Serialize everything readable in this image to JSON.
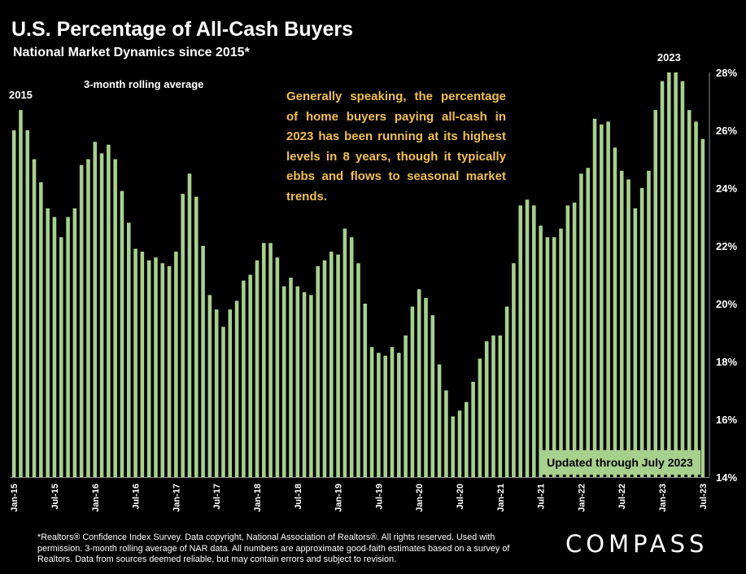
{
  "header": {
    "title": "U.S. Percentage of All-Cash Buyers",
    "subtitle": "National Market Dynamics since 2015*"
  },
  "annotations": {
    "commentary": "Generally speaking, the percentage of home buyers paying all-cash in 2023 has been running at its highest levels in 8 years, though it typically ebbs and flows to seasonal market trends.",
    "updated": "Updated through July 2023"
  },
  "footer": {
    "footnote": "*Realtors® Confidence Index Survey. Data copyright, National Association of Realtors®. All rights reserved. Used with permission. 3-month rolling average of NAR data. All numbers are approximate good-faith estimates based on a survey of Realtors. Data from sources deemed reliable, but may contain errors and subject to revision.",
    "logo": "COMPASS"
  },
  "colors": {
    "background": "#000000",
    "bar": "#a8d08d",
    "commentary": "#f2c14e",
    "text": "#ffffff",
    "grid": "#5a5a5a"
  },
  "chart_data": {
    "type": "bar",
    "title": "U.S. Percentage of All-Cash Buyers",
    "subtitle": "National Market Dynamics since 2015*",
    "series_note": "3-month rolling average",
    "ylim": [
      14,
      28
    ],
    "yticks": [
      14,
      16,
      18,
      20,
      22,
      24,
      26,
      28
    ],
    "ytick_labels": [
      "14%",
      "16%",
      "18%",
      "20%",
      "22%",
      "24%",
      "26%",
      "28%"
    ],
    "y_axis_side": "right",
    "grid": false,
    "legend": "none",
    "xtick_labels": [
      "Jan-15",
      "Jul-15",
      "Jan-16",
      "Jul-16",
      "Jan-17",
      "Jul-17",
      "Jan-18",
      "Jul-18",
      "Jan-19",
      "Jul-19",
      "Jan-20",
      "Jul-20",
      "Jan-21",
      "Jul-21",
      "Jan-22",
      "Jul-22",
      "Jan-23",
      "Jul-23"
    ],
    "value_labels": [
      {
        "category": "Feb-15",
        "text": "2015"
      },
      {
        "category": "Feb-23",
        "text": "2023"
      }
    ],
    "categories": [
      "Jan-15",
      "Feb-15",
      "Mar-15",
      "Apr-15",
      "May-15",
      "Jun-15",
      "Jul-15",
      "Aug-15",
      "Sep-15",
      "Oct-15",
      "Nov-15",
      "Dec-15",
      "Jan-16",
      "Feb-16",
      "Mar-16",
      "Apr-16",
      "May-16",
      "Jun-16",
      "Jul-16",
      "Aug-16",
      "Sep-16",
      "Oct-16",
      "Nov-16",
      "Dec-16",
      "Jan-17",
      "Feb-17",
      "Mar-17",
      "Apr-17",
      "May-17",
      "Jun-17",
      "Jul-17",
      "Aug-17",
      "Sep-17",
      "Oct-17",
      "Nov-17",
      "Dec-17",
      "Jan-18",
      "Feb-18",
      "Mar-18",
      "Apr-18",
      "May-18",
      "Jun-18",
      "Jul-18",
      "Aug-18",
      "Sep-18",
      "Oct-18",
      "Nov-18",
      "Dec-18",
      "Jan-19",
      "Feb-19",
      "Mar-19",
      "Apr-19",
      "May-19",
      "Jun-19",
      "Jul-19",
      "Aug-19",
      "Sep-19",
      "Oct-19",
      "Nov-19",
      "Dec-19",
      "Jan-20",
      "Feb-20",
      "Mar-20",
      "Apr-20",
      "May-20",
      "Jun-20",
      "Jul-20",
      "Aug-20",
      "Sep-20",
      "Oct-20",
      "Nov-20",
      "Dec-20",
      "Jan-21",
      "Feb-21",
      "Mar-21",
      "Apr-21",
      "May-21",
      "Jun-21",
      "Jul-21",
      "Aug-21",
      "Sep-21",
      "Oct-21",
      "Nov-21",
      "Dec-21",
      "Jan-22",
      "Feb-22",
      "Mar-22",
      "Apr-22",
      "May-22",
      "Jun-22",
      "Jul-22",
      "Aug-22",
      "Sep-22",
      "Oct-22",
      "Nov-22",
      "Dec-22",
      "Jan-23",
      "Feb-23",
      "Mar-23",
      "Apr-23",
      "May-23",
      "Jun-23",
      "Jul-23"
    ],
    "values": [
      26.0,
      26.7,
      26.0,
      25.0,
      24.2,
      23.3,
      23.0,
      22.3,
      23.0,
      23.3,
      24.8,
      25.0,
      25.6,
      25.2,
      25.5,
      25.0,
      23.9,
      22.8,
      21.9,
      21.8,
      21.5,
      21.6,
      21.4,
      21.3,
      21.8,
      23.8,
      24.5,
      23.7,
      22.0,
      20.3,
      19.8,
      19.2,
      19.8,
      20.1,
      20.8,
      21.0,
      21.5,
      22.1,
      22.1,
      21.6,
      20.6,
      20.9,
      20.6,
      20.4,
      20.3,
      21.3,
      21.5,
      21.8,
      21.7,
      22.6,
      22.3,
      21.4,
      20.0,
      18.5,
      18.3,
      18.2,
      18.5,
      18.3,
      18.9,
      19.9,
      20.5,
      20.2,
      19.6,
      17.9,
      17.0,
      16.1,
      16.3,
      16.6,
      17.3,
      18.1,
      18.7,
      18.9,
      18.9,
      19.9,
      21.4,
      23.4,
      23.6,
      23.4,
      22.7,
      22.3,
      22.3,
      22.6,
      23.4,
      23.5,
      24.5,
      24.7,
      26.4,
      26.2,
      26.3,
      25.4,
      24.6,
      24.3,
      23.3,
      24.0,
      24.6,
      26.7,
      27.7,
      28.0,
      28.0,
      27.7,
      26.7,
      26.3,
      25.7
    ]
  }
}
